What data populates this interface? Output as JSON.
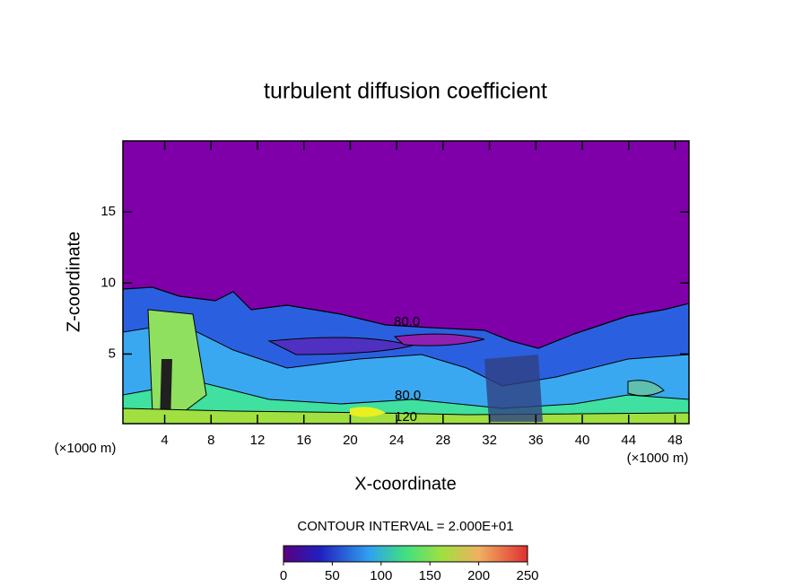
{
  "chart_data": {
    "type": "contour",
    "title": "turbulent diffusion coefficient",
    "x_label": "X-coordinate",
    "y_label": "Z-coordinate",
    "x_unit_label": "(×1000 m)",
    "y_unit_label": "(×1000 m)",
    "xlim": [
      0.4,
      49.2
    ],
    "xticks": [
      4,
      8,
      12,
      16,
      20,
      24,
      28,
      32,
      36,
      40,
      44,
      48
    ],
    "ylim": [
      0.1,
      20
    ],
    "yticks": [
      5,
      10,
      15
    ],
    "contour_labels": [
      "80.0",
      "80.0",
      "120"
    ],
    "contour_interval_label": "CONTOUR INTERVAL = 2.000E+01",
    "colorbar": {
      "lim": [
        0,
        250
      ],
      "ticks": [
        0,
        50,
        100,
        150,
        200,
        250
      ]
    }
  }
}
